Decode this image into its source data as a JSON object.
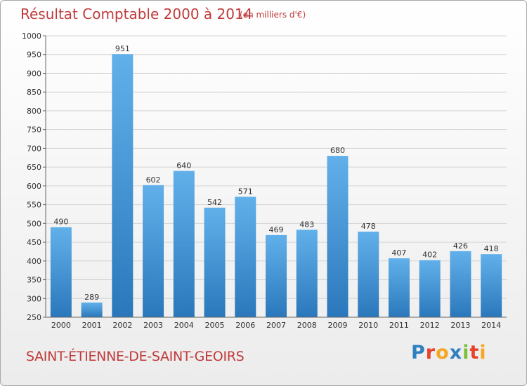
{
  "title": "Résultat Comptable 2000 à 2014",
  "subtitle": "(en milliers d'€)",
  "commune": "SAINT-ÉTIENNE-DE-SAINT-GEOIRS",
  "logo": {
    "letters": [
      "P",
      "r",
      "o",
      "x",
      "i",
      "t",
      "i"
    ],
    "colors": [
      "#2f7fc1",
      "#e8412c",
      "#f5a623",
      "#2f7fc1",
      "#7bbf3a",
      "#e8412c",
      "#f5a623"
    ]
  },
  "colors": {
    "bar_top": "#62b0ea",
    "bar_bottom": "#2a78bb",
    "title": "#c03a3a"
  },
  "chart_data": {
    "type": "bar",
    "categories": [
      "2000",
      "2001",
      "2002",
      "2003",
      "2004",
      "2005",
      "2006",
      "2007",
      "2008",
      "2009",
      "2010",
      "2011",
      "2012",
      "2013",
      "2014"
    ],
    "values": [
      490,
      289,
      951,
      602,
      640,
      542,
      571,
      469,
      483,
      680,
      478,
      407,
      402,
      426,
      418
    ],
    "ylim": [
      250,
      1000
    ],
    "yticks": [
      250,
      300,
      350,
      400,
      450,
      500,
      550,
      600,
      650,
      700,
      750,
      800,
      850,
      900,
      950,
      1000
    ],
    "grid": true,
    "data_labels": true
  }
}
